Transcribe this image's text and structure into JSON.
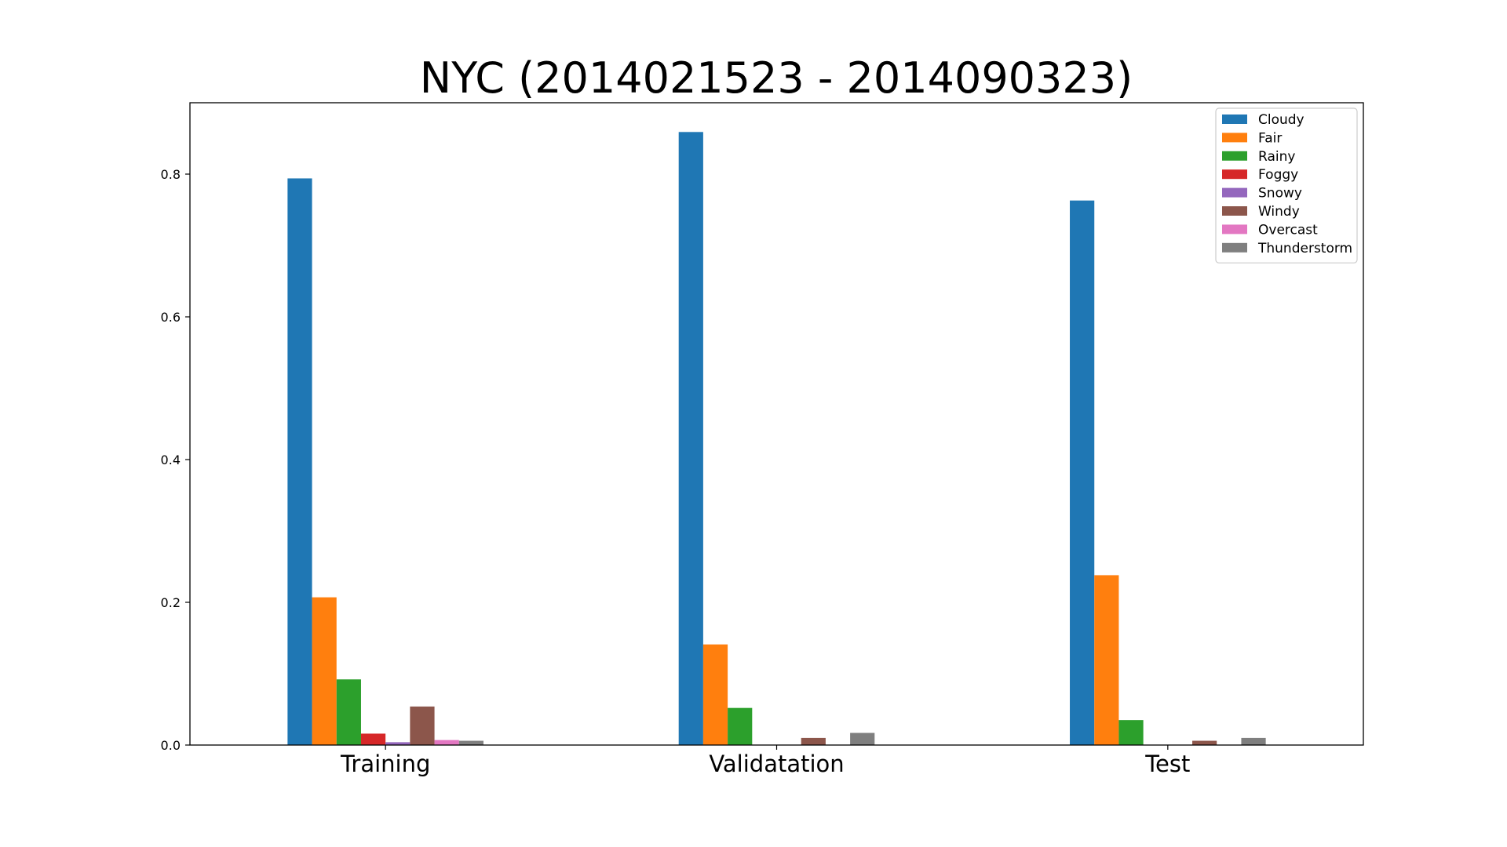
{
  "chart_data": {
    "type": "bar",
    "title": "NYC (2014021523 - 2014090323)",
    "xlabel": "",
    "ylabel": "",
    "categories": [
      "Training",
      "Validatation",
      "Test"
    ],
    "ylim": [
      0,
      0.9
    ],
    "yticks": [
      0.0,
      0.2,
      0.4,
      0.6,
      0.8
    ],
    "ytick_labels": [
      "0.0",
      "0.2",
      "0.4",
      "0.6",
      "0.8"
    ],
    "legend_position": "top-right",
    "grid": false,
    "series": [
      {
        "name": "Cloudy",
        "color": "#1f77b4",
        "values": [
          0.794,
          0.859,
          0.763
        ]
      },
      {
        "name": "Fair",
        "color": "#ff7f0e",
        "values": [
          0.207,
          0.141,
          0.238
        ]
      },
      {
        "name": "Rainy",
        "color": "#2ca02c",
        "values": [
          0.092,
          0.052,
          0.035
        ]
      },
      {
        "name": "Foggy",
        "color": "#d62728",
        "values": [
          0.016,
          0.0,
          0.0
        ]
      },
      {
        "name": "Snowy",
        "color": "#9467bd",
        "values": [
          0.004,
          0.0,
          0.0
        ]
      },
      {
        "name": "Windy",
        "color": "#8c564b",
        "values": [
          0.054,
          0.01,
          0.006
        ]
      },
      {
        "name": "Overcast",
        "color": "#e377c2",
        "values": [
          0.007,
          0.0,
          0.0
        ]
      },
      {
        "name": "Thunderstorm",
        "color": "#7f7f7f",
        "values": [
          0.006,
          0.017,
          0.01
        ]
      }
    ]
  }
}
